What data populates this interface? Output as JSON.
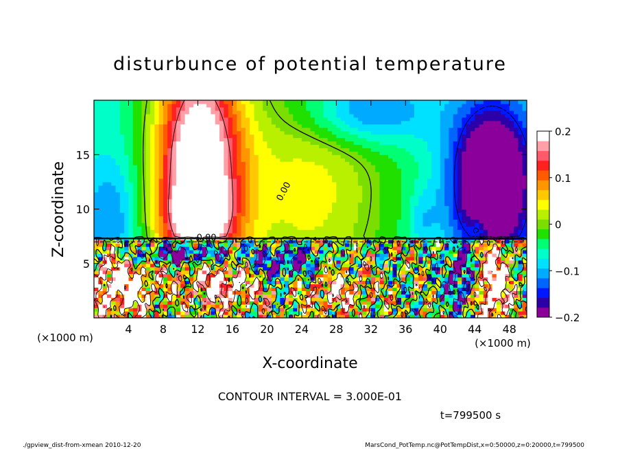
{
  "chart_data": {
    "type": "heatmap",
    "title": "disturbunce of potential temperature",
    "xlabel": "X-coordinate",
    "ylabel": "Z-coordinate",
    "x_units_left": "(×1000 m)",
    "x_units_right": "(×1000 m)",
    "xlim": [
      0,
      50
    ],
    "ylim": [
      0,
      20
    ],
    "x_ticks": [
      4,
      8,
      12,
      16,
      20,
      24,
      28,
      32,
      36,
      40,
      44,
      48
    ],
    "y_ticks": [
      5,
      10,
      15
    ],
    "colorbar": {
      "range": [
        -0.2,
        0.2
      ],
      "ticks": [
        {
          "value": 0.2,
          "label": "0.2"
        },
        {
          "value": 0.1,
          "label": "0.1"
        },
        {
          "value": 0.0,
          "label": "0"
        },
        {
          "value": -0.1,
          "label": "−0.1"
        },
        {
          "value": -0.2,
          "label": "−0.2"
        }
      ],
      "colors": [
        "#8b009b",
        "#2b00a8",
        "#0018ff",
        "#0064ff",
        "#00aaff",
        "#00e0ff",
        "#00ffc8",
        "#00ff73",
        "#20e000",
        "#7bde00",
        "#b8f000",
        "#ffff00",
        "#ffc800",
        "#ff9600",
        "#ff5a00",
        "#ff2020",
        "#ff5a6a",
        "#ffa0a8",
        "#ffffff"
      ]
    },
    "contour_labels": [
      {
        "text": "0.00",
        "x": 22.2,
        "z": 11.5,
        "rotate": -62
      },
      {
        "text": "0.00",
        "x": 13.0,
        "z": 7.1,
        "rotate": 0
      }
    ],
    "annotations": {
      "contour_interval": "CONTOUR INTERVAL = 3.000E-01",
      "time": "t=799500 s",
      "footer_left": "./gpview_dist-from-xmean  2010-12-20",
      "footer_right": "MarsCond_PotTemp.nc@PotTempDist,x=0:50000,z=0:20000,t=799500"
    }
  }
}
